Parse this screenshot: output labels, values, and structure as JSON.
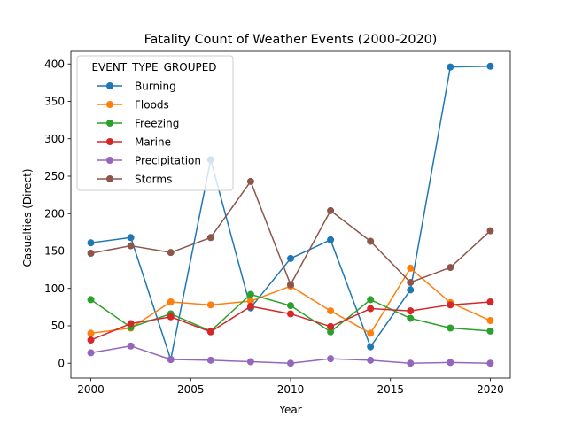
{
  "chart_data": {
    "type": "line",
    "title": "Fatality Count of Weather Events (2000-2020)",
    "xlabel": "Year",
    "ylabel": "Casualties (Direct)",
    "xlim": [
      1999,
      2021
    ],
    "ylim": [
      -19.85,
      416.85
    ],
    "x_ticks": [
      2000,
      2005,
      2010,
      2015,
      2020
    ],
    "y_ticks": [
      0,
      50,
      100,
      150,
      200,
      250,
      300,
      350,
      400
    ],
    "grid": false,
    "legend_title": "EVENT_TYPE_GROUPED",
    "legend_position": "top-left",
    "x": [
      2000,
      2002,
      2004,
      2006,
      2008,
      2010,
      2012,
      2014,
      2016,
      2018,
      2020
    ],
    "series": [
      {
        "name": "Burning",
        "color": "#1f77b4",
        "values": [
          161,
          168,
          5,
          272,
          74,
          140,
          165,
          22,
          98,
          396,
          397
        ]
      },
      {
        "name": "Floods",
        "color": "#ff7f0e",
        "values": [
          40,
          47,
          82,
          78,
          83,
          103,
          70,
          40,
          127,
          81,
          57
        ]
      },
      {
        "name": "Freezing",
        "color": "#2ca02c",
        "values": [
          85,
          48,
          66,
          43,
          92,
          77,
          42,
          85,
          60,
          47,
          43
        ]
      },
      {
        "name": "Marine",
        "color": "#d62728",
        "values": [
          31,
          53,
          62,
          42,
          76,
          66,
          49,
          73,
          70,
          78,
          82
        ]
      },
      {
        "name": "Precipitation",
        "color": "#9467bd",
        "values": [
          14,
          23,
          5,
          4,
          2,
          0,
          6,
          4,
          0,
          1,
          0
        ]
      },
      {
        "name": "Storms",
        "color": "#8c564b",
        "values": [
          147,
          157,
          148,
          168,
          243,
          105,
          204,
          163,
          108,
          128,
          177
        ]
      }
    ]
  }
}
